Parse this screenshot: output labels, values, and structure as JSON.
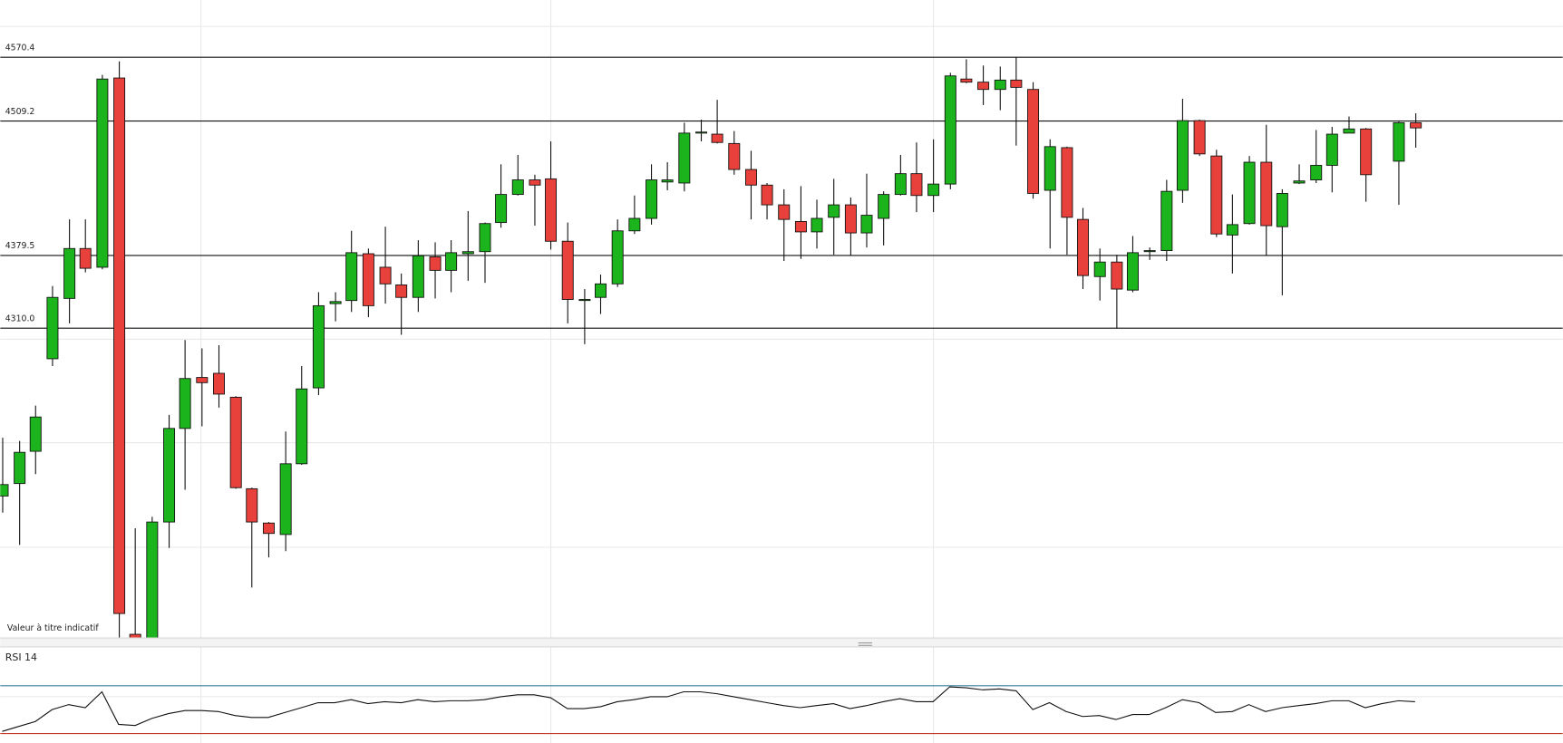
{
  "chart_data": [
    {
      "type": "candlestick",
      "annotation": "Valeur à titre indicatif",
      "up_color": "#1cb41c",
      "down_color": "#e8403a",
      "ylim": [
        4012,
        4625
      ],
      "yticks": [
        4570.4,
        4509.2,
        4379.5,
        {
          "value": 4310,
          "label": "4310.0"
        }
      ],
      "open": [
        4148,
        4160,
        4191,
        4280,
        4338,
        4386,
        4368,
        4550,
        4015,
        4008,
        4123,
        4213,
        4262,
        4266,
        4243,
        4155,
        4122,
        4111,
        4179,
        4252,
        4333,
        4336,
        4381,
        4368,
        4351,
        4339,
        4378,
        4365,
        4381,
        4383,
        4411,
        4438,
        4452,
        4453,
        4393,
        4336,
        4339,
        4352,
        4403,
        4415,
        4450,
        4449,
        4497,
        4496,
        4487,
        4462,
        4447,
        4428,
        4412,
        4402,
        4416,
        4428,
        4401,
        4415,
        4438,
        4458,
        4437,
        4448,
        4549,
        4546,
        4539,
        4548,
        4539,
        4442,
        4483,
        4414,
        4359,
        4373,
        4346,
        4383,
        4384,
        4442,
        4509,
        4475,
        4399,
        4410,
        4469,
        4407,
        4449,
        4452,
        4466,
        4497,
        4501,
        null,
        4470,
        4507
      ],
      "high": [
        4204,
        4201,
        4235,
        4350,
        4414,
        4414,
        4553,
        4566,
        4117,
        4128,
        4226,
        4298,
        4290,
        4293,
        4244,
        4156,
        4123,
        4210,
        4273,
        4344,
        4344,
        4403,
        4386,
        4407,
        4362,
        4394,
        4392,
        4394,
        4422,
        4411,
        4467,
        4476,
        4457,
        4489,
        4411,
        4347,
        4361,
        4414,
        4437,
        4467,
        4469,
        4507,
        4510,
        4529,
        4499,
        4480,
        4449,
        4443,
        4446,
        4433,
        4453,
        4435,
        4458,
        4441,
        4476,
        4488,
        4491,
        4555,
        4568,
        4562,
        4561,
        4570,
        4546,
        4491,
        4484,
        4425,
        4386,
        4380,
        4398,
        4387,
        4452,
        4530,
        4510,
        4481,
        4438,
        4475,
        4505,
        4443,
        4467,
        4500,
        4503,
        4513,
        4502,
        null,
        4508,
        4516
      ],
      "low": [
        4132,
        4101,
        4169,
        4273,
        4314,
        4363,
        4366,
        4000,
        4000,
        4000,
        4098,
        4154,
        4215,
        4233,
        4155,
        4060,
        4089,
        4095,
        4178,
        4245,
        4316,
        4325,
        4320,
        4333,
        4303,
        4325,
        4338,
        4344,
        4355,
        4353,
        4406,
        4437,
        4408,
        4385,
        4314,
        4294,
        4323,
        4349,
        4400,
        4409,
        4442,
        4441,
        4489,
        4487,
        4457,
        4414,
        4414,
        4374,
        4376,
        4386,
        4380,
        4379,
        4387,
        4389,
        4437,
        4421,
        4421,
        4443,
        4545,
        4524,
        4519,
        4485,
        4434,
        4386,
        4380,
        4347,
        4336,
        4309,
        4344,
        4375,
        4374,
        4430,
        4475,
        4397,
        4362,
        4409,
        4379,
        4341,
        4448,
        4449,
        4440,
        4497,
        4431,
        null,
        4428,
        4483
      ],
      "close": [
        4159,
        4190,
        4224,
        4339,
        4386,
        4367,
        4549,
        4035,
        4010,
        4123,
        4213,
        4261,
        4257,
        4246,
        4156,
        4123,
        4112,
        4179,
        4251,
        4331,
        4335,
        4382,
        4331,
        4352,
        4339,
        4379,
        4365,
        4382,
        4383,
        4410,
        4438,
        4452,
        4447,
        4393,
        4337,
        4337,
        4352,
        4403,
        4415,
        4452,
        4452,
        4497,
        4498,
        4488,
        4462,
        4447,
        4428,
        4414,
        4402,
        4415,
        4428,
        4401,
        4418,
        4438,
        4458,
        4437,
        4448,
        4552,
        4546,
        4539,
        4548,
        4541,
        4439,
        4484,
        4416,
        4360,
        4373,
        4347,
        4382,
        4384,
        4441,
        4509,
        4477,
        4400,
        4409,
        4469,
        4408,
        4439,
        4451,
        4466,
        4496,
        4501,
        4457,
        null,
        4507,
        4502
      ]
    },
    {
      "type": "line",
      "title": "RSI 14",
      "color": "#111111",
      "ylim": [
        22,
        101
      ],
      "levels": [
        {
          "value": 70,
          "color": "#3b7e9a"
        },
        {
          "value": 30,
          "color": "#c0392b"
        }
      ],
      "values": [
        31.6,
        35.7,
        39.8,
        49.6,
        53.7,
        51.2,
        64.3,
        37.4,
        36.5,
        42.3,
        46.3,
        48.8,
        48.8,
        48.0,
        44.7,
        43.1,
        43.1,
        47.2,
        51.2,
        55.3,
        55.3,
        57.8,
        54.5,
        56.1,
        55.3,
        57.8,
        56.1,
        56.9,
        56.9,
        57.8,
        60.2,
        61.8,
        61.8,
        59.4,
        50.4,
        50.4,
        52.0,
        56.1,
        57.8,
        60.2,
        60.2,
        64.3,
        64.3,
        62.7,
        60.2,
        57.8,
        55.3,
        52.9,
        51.2,
        52.9,
        54.5,
        50.4,
        52.9,
        56.1,
        58.6,
        56.1,
        56.1,
        68.4,
        67.6,
        65.9,
        66.7,
        65.1,
        49.6,
        55.3,
        48.0,
        43.9,
        44.7,
        41.4,
        45.5,
        45.5,
        51.2,
        57.8,
        55.3,
        47.2,
        48.0,
        53.7,
        48.0,
        51.2,
        52.9,
        54.5,
        56.9,
        56.9,
        51.2,
        54.5,
        56.9,
        56.1
      ]
    }
  ]
}
